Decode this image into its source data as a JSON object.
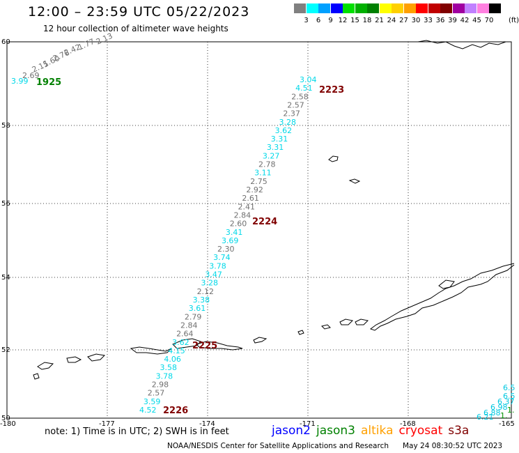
{
  "header": {
    "title": "12:00 – 23:59 UTC 05/22/2023",
    "subtitle": "12 hour collection of altimeter wave heights"
  },
  "scale": {
    "colors": [
      "#808080",
      "#00ffff",
      "#00a0ff",
      "#0000ff",
      "#00e000",
      "#00b000",
      "#008000",
      "#ffff00",
      "#ffd000",
      "#ffa000",
      "#ff0000",
      "#c00000",
      "#800000",
      "#a000a0",
      "#c080ff",
      "#ff80e0",
      "#000000"
    ],
    "labels": [
      "3",
      "6",
      "9",
      "12",
      "15",
      "18",
      "21",
      "24",
      "27",
      "30",
      "33",
      "36",
      "39",
      "42",
      "45",
      "70"
    ],
    "unit": "(ft)"
  },
  "axes": {
    "lat_labels": [
      "60",
      "58",
      "56",
      "54",
      "52",
      "50"
    ],
    "lon_labels": [
      "-180",
      "-177",
      "-174",
      "-171",
      "-168",
      "-165"
    ]
  },
  "passes": [
    "1925",
    "2223",
    "2224",
    "2225",
    "2226"
  ],
  "tracks": [
    {
      "id": "2223-2226",
      "values": [
        "3.04",
        "4.51",
        "2.58",
        "2.57",
        "2.37",
        "3.28",
        "3.62",
        "3.31",
        "3.31",
        "3.27",
        "2.78",
        "3.11",
        "2.75",
        "2.92",
        "2.61",
        "2.41",
        "2.84",
        "2.60",
        "3.41",
        "3.69",
        "2.30",
        "3.74",
        "3.78",
        "3.47",
        "3.28",
        "2.12",
        "3.38",
        "3.61",
        "2.79",
        "2.84",
        "2.64",
        "3.62",
        "4.15",
        "4.06",
        "3.58",
        "3.78",
        "2.98",
        "2.57",
        "3.59",
        "4.52"
      ]
    },
    {
      "id": "1925",
      "values": [
        "2.13",
        "1.77",
        "2.42",
        "2.76",
        "1.60",
        "2.15",
        "2.69",
        "3.99"
      ]
    },
    {
      "id": "edge",
      "values": [
        "6.5",
        "6.5",
        "6.37",
        "6.98",
        "6.88",
        "6.21",
        "1.",
        "1."
      ]
    }
  ],
  "footer": {
    "note": "note: 1) Time is in UTC; 2) SWH is in feet",
    "satellites": [
      {
        "name": "jason2",
        "color": "#0000ff"
      },
      {
        "name": "jason3",
        "color": "#008000"
      },
      {
        "name": "altika",
        "color": "#ffa000"
      },
      {
        "name": "cryosat",
        "color": "#ff0000"
      },
      {
        "name": "s3a",
        "color": "#800000"
      }
    ],
    "credit": "NOAA/NESDIS Center for Satellite Applications and Research",
    "timestamp": "May 24 08:30:52 UTC 2023"
  }
}
